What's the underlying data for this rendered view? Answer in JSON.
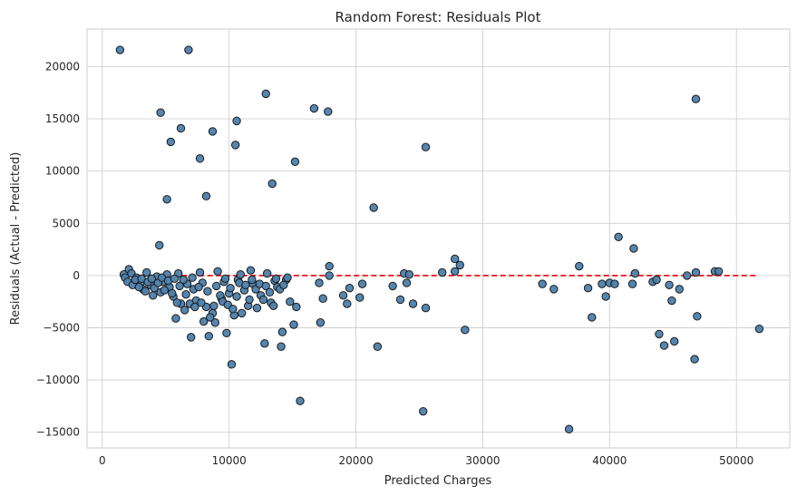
{
  "chart_data": {
    "type": "scatter",
    "title": "Random Forest: Residuals Plot",
    "xlabel": "Predicted Charges",
    "ylabel": "Residuals (Actual - Predicted)",
    "xlim": [
      -1200,
      54200
    ],
    "ylim": [
      -16500,
      23600
    ],
    "xticks": [
      0,
      10000,
      20000,
      30000,
      40000,
      50000
    ],
    "xtick_labels": [
      "0",
      "10000",
      "20000",
      "30000",
      "40000",
      "50000"
    ],
    "yticks": [
      -15000,
      -10000,
      -5000,
      0,
      5000,
      10000,
      15000,
      20000
    ],
    "ytick_labels": [
      "−15000",
      "−10000",
      "−5000",
      "0",
      "5000",
      "10000",
      "15000",
      "20000"
    ],
    "grid": true,
    "point_color": "#4c7fab",
    "point_edge": "#1a1a1a",
    "zero_line": {
      "y": 0,
      "x": [
        1500,
        51700
      ],
      "color": "#e8141b",
      "style": "dashed"
    },
    "points": [
      {
        "x": 1400,
        "y": 21600
      },
      {
        "x": 6800,
        "y": 21600
      },
      {
        "x": 12900,
        "y": 17400
      },
      {
        "x": 16700,
        "y": 16000
      },
      {
        "x": 17800,
        "y": 15700
      },
      {
        "x": 4600,
        "y": 15600
      },
      {
        "x": 10600,
        "y": 14800
      },
      {
        "x": 6200,
        "y": 14100
      },
      {
        "x": 8700,
        "y": 13800
      },
      {
        "x": 5400,
        "y": 12800
      },
      {
        "x": 10500,
        "y": 12500
      },
      {
        "x": 25500,
        "y": 12300
      },
      {
        "x": 7700,
        "y": 11200
      },
      {
        "x": 15200,
        "y": 10900
      },
      {
        "x": 13400,
        "y": 8800
      },
      {
        "x": 8200,
        "y": 7600
      },
      {
        "x": 5100,
        "y": 7300
      },
      {
        "x": 21400,
        "y": 6500
      },
      {
        "x": 4500,
        "y": 2900
      },
      {
        "x": 46800,
        "y": 16900
      },
      {
        "x": 40700,
        "y": 3700
      },
      {
        "x": 41900,
        "y": 2600
      },
      {
        "x": 27800,
        "y": 1600
      },
      {
        "x": 28200,
        "y": 1000
      },
      {
        "x": 37600,
        "y": 900
      },
      {
        "x": 17900,
        "y": 900
      },
      {
        "x": 1700,
        "y": 100
      },
      {
        "x": 2100,
        "y": 600
      },
      {
        "x": 2300,
        "y": 200
      },
      {
        "x": 2700,
        "y": -200
      },
      {
        "x": 3000,
        "y": -700
      },
      {
        "x": 3200,
        "y": -1300
      },
      {
        "x": 3500,
        "y": 300
      },
      {
        "x": 3800,
        "y": -900
      },
      {
        "x": 4000,
        "y": -1900
      },
      {
        "x": 4300,
        "y": -100
      },
      {
        "x": 4600,
        "y": -1600
      },
      {
        "x": 4800,
        "y": -600
      },
      {
        "x": 5100,
        "y": 100
      },
      {
        "x": 5300,
        "y": -1100
      },
      {
        "x": 5600,
        "y": -2000
      },
      {
        "x": 5800,
        "y": -4100
      },
      {
        "x": 6000,
        "y": 200
      },
      {
        "x": 6200,
        "y": -2700
      },
      {
        "x": 6500,
        "y": -3300
      },
      {
        "x": 6700,
        "y": -800
      },
      {
        "x": 7000,
        "y": -5900
      },
      {
        "x": 7200,
        "y": -1300
      },
      {
        "x": 7400,
        "y": -2400
      },
      {
        "x": 7700,
        "y": 300
      },
      {
        "x": 7900,
        "y": -700
      },
      {
        "x": 8200,
        "y": -3000
      },
      {
        "x": 8400,
        "y": -5800
      },
      {
        "x": 8700,
        "y": -3600
      },
      {
        "x": 8900,
        "y": -4500
      },
      {
        "x": 9100,
        "y": 400
      },
      {
        "x": 9400,
        "y": -2200
      },
      {
        "x": 9600,
        "y": -600
      },
      {
        "x": 9800,
        "y": -5500
      },
      {
        "x": 10000,
        "y": -1700
      },
      {
        "x": 10200,
        "y": -8500
      },
      {
        "x": 10400,
        "y": -3800
      },
      {
        "x": 10700,
        "y": -400
      },
      {
        "x": 10900,
        "y": 100
      },
      {
        "x": 11200,
        "y": -1400
      },
      {
        "x": 11500,
        "y": -2900
      },
      {
        "x": 11700,
        "y": 500
      },
      {
        "x": 11900,
        "y": -800
      },
      {
        "x": 12200,
        "y": -3100
      },
      {
        "x": 12500,
        "y": -1900
      },
      {
        "x": 12800,
        "y": -6500
      },
      {
        "x": 13000,
        "y": 200
      },
      {
        "x": 13300,
        "y": -2600
      },
      {
        "x": 13600,
        "y": -500
      },
      {
        "x": 13800,
        "y": -1100
      },
      {
        "x": 14100,
        "y": -6800
      },
      {
        "x": 14200,
        "y": -5400
      },
      {
        "x": 14500,
        "y": -400
      },
      {
        "x": 14800,
        "y": -2500
      },
      {
        "x": 15100,
        "y": -4700
      },
      {
        "x": 15300,
        "y": -3000
      },
      {
        "x": 15600,
        "y": -12000
      },
      {
        "x": 17100,
        "y": -700
      },
      {
        "x": 17200,
        "y": -4500
      },
      {
        "x": 17400,
        "y": -2200
      },
      {
        "x": 17900,
        "y": 0
      },
      {
        "x": 19000,
        "y": -1900
      },
      {
        "x": 19300,
        "y": -2700
      },
      {
        "x": 19500,
        "y": -1200
      },
      {
        "x": 20300,
        "y": -2100
      },
      {
        "x": 20500,
        "y": -800
      },
      {
        "x": 21700,
        "y": -6800
      },
      {
        "x": 22900,
        "y": -1000
      },
      {
        "x": 23500,
        "y": -2300
      },
      {
        "x": 23800,
        "y": 200
      },
      {
        "x": 24000,
        "y": -700
      },
      {
        "x": 24200,
        "y": 100
      },
      {
        "x": 24500,
        "y": -2700
      },
      {
        "x": 25300,
        "y": -13000
      },
      {
        "x": 25500,
        "y": -3100
      },
      {
        "x": 26800,
        "y": 300
      },
      {
        "x": 27800,
        "y": 400
      },
      {
        "x": 28600,
        "y": -5200
      },
      {
        "x": 34700,
        "y": -800
      },
      {
        "x": 35600,
        "y": -1300
      },
      {
        "x": 36800,
        "y": -14700
      },
      {
        "x": 38300,
        "y": -1200
      },
      {
        "x": 38600,
        "y": -4000
      },
      {
        "x": 39400,
        "y": -800
      },
      {
        "x": 39700,
        "y": -2000
      },
      {
        "x": 40000,
        "y": -700
      },
      {
        "x": 40400,
        "y": -800
      },
      {
        "x": 41800,
        "y": -800
      },
      {
        "x": 42000,
        "y": 200
      },
      {
        "x": 43400,
        "y": -600
      },
      {
        "x": 43700,
        "y": -400
      },
      {
        "x": 43900,
        "y": -5600
      },
      {
        "x": 44300,
        "y": -6700
      },
      {
        "x": 44700,
        "y": -900
      },
      {
        "x": 44900,
        "y": -2400
      },
      {
        "x": 45100,
        "y": -6300
      },
      {
        "x": 45500,
        "y": -1300
      },
      {
        "x": 46100,
        "y": 0
      },
      {
        "x": 46700,
        "y": -8000
      },
      {
        "x": 46800,
        "y": 300
      },
      {
        "x": 46900,
        "y": -3900
      },
      {
        "x": 48300,
        "y": 400
      },
      {
        "x": 48600,
        "y": 400
      },
      {
        "x": 51800,
        "y": -5100
      },
      {
        "x": 1800,
        "y": -200
      },
      {
        "x": 2000,
        "y": -600
      },
      {
        "x": 2400,
        "y": -900
      },
      {
        "x": 2600,
        "y": -400
      },
      {
        "x": 2900,
        "y": -1100
      },
      {
        "x": 3100,
        "y": -300
      },
      {
        "x": 3400,
        "y": -1500
      },
      {
        "x": 3600,
        "y": -600
      },
      {
        "x": 3900,
        "y": -300
      },
      {
        "x": 4100,
        "y": -1200
      },
      {
        "x": 4400,
        "y": -700
      },
      {
        "x": 4700,
        "y": -200
      },
      {
        "x": 4900,
        "y": -1400
      },
      {
        "x": 5200,
        "y": -500
      },
      {
        "x": 5500,
        "y": -1700
      },
      {
        "x": 5700,
        "y": -300
      },
      {
        "x": 5900,
        "y": -2600
      },
      {
        "x": 6100,
        "y": -1000
      },
      {
        "x": 6400,
        "y": -400
      },
      {
        "x": 6600,
        "y": -1800
      },
      {
        "x": 6900,
        "y": -2700
      },
      {
        "x": 7100,
        "y": -200
      },
      {
        "x": 7300,
        "y": -3000
      },
      {
        "x": 7600,
        "y": -1100
      },
      {
        "x": 7800,
        "y": -2600
      },
      {
        "x": 8000,
        "y": -4400
      },
      {
        "x": 8300,
        "y": -1500
      },
      {
        "x": 8500,
        "y": -4000
      },
      {
        "x": 8800,
        "y": -2900
      },
      {
        "x": 9000,
        "y": -1000
      },
      {
        "x": 9300,
        "y": -1900
      },
      {
        "x": 9500,
        "y": -2500
      },
      {
        "x": 9700,
        "y": -300
      },
      {
        "x": 9900,
        "y": -2800
      },
      {
        "x": 10100,
        "y": -1200
      },
      {
        "x": 10300,
        "y": -3200
      },
      {
        "x": 10600,
        "y": -2000
      },
      {
        "x": 10800,
        "y": -700
      },
      {
        "x": 11000,
        "y": -3600
      },
      {
        "x": 11300,
        "y": -900
      },
      {
        "x": 11600,
        "y": -2300
      },
      {
        "x": 11800,
        "y": -400
      },
      {
        "x": 12100,
        "y": -1300
      },
      {
        "x": 12400,
        "y": -800
      },
      {
        "x": 12700,
        "y": -2300
      },
      {
        "x": 12900,
        "y": -1000
      },
      {
        "x": 13200,
        "y": -1600
      },
      {
        "x": 13500,
        "y": -2900
      },
      {
        "x": 13700,
        "y": -300
      },
      {
        "x": 14000,
        "y": -1300
      },
      {
        "x": 14300,
        "y": -900
      },
      {
        "x": 14600,
        "y": -200
      }
    ]
  }
}
